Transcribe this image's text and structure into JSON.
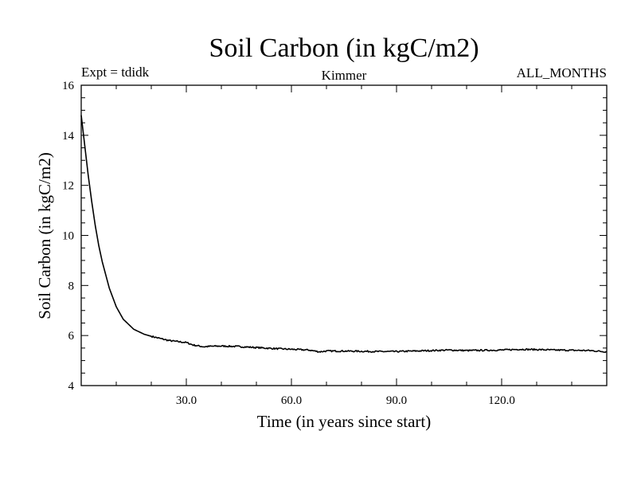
{
  "chart_data": {
    "type": "line",
    "title": "Soil Carbon (in kgC/m2)",
    "subtitle_left": "Expt = tdidk",
    "subtitle_center": "Kimmer",
    "subtitle_right": "ALL_MONTHS",
    "xlabel": "Time (in years since start)",
    "ylabel": "Soil Carbon (in kgC/m2)",
    "xlim": [
      0,
      150
    ],
    "ylim": [
      4,
      16
    ],
    "x_ticks": [
      30,
      60,
      90,
      120
    ],
    "x_tick_labels": [
      "30.0",
      "60.0",
      "90.0",
      "120.0"
    ],
    "y_ticks": [
      4,
      6,
      8,
      10,
      12,
      14,
      16
    ],
    "y_tick_labels": [
      "4",
      "6",
      "8",
      "10",
      "12",
      "14",
      "16"
    ],
    "grid": false,
    "series": [
      {
        "name": "Soil Carbon",
        "x": [
          0,
          1,
          2,
          3,
          4,
          5,
          6,
          8,
          10,
          12,
          15,
          18,
          20,
          22,
          25,
          28,
          30,
          32,
          35,
          37,
          40,
          45,
          50,
          55,
          60,
          65,
          68,
          70,
          75,
          80,
          85,
          90,
          95,
          100,
          105,
          110,
          115,
          120,
          125,
          130,
          135,
          140,
          145,
          150
        ],
        "values": [
          14.8,
          13.6,
          12.4,
          11.35,
          10.4,
          9.6,
          8.95,
          7.9,
          7.15,
          6.65,
          6.25,
          6.05,
          5.97,
          5.9,
          5.8,
          5.75,
          5.72,
          5.62,
          5.55,
          5.57,
          5.58,
          5.56,
          5.52,
          5.48,
          5.45,
          5.42,
          5.35,
          5.38,
          5.38,
          5.37,
          5.36,
          5.36,
          5.38,
          5.4,
          5.42,
          5.4,
          5.41,
          5.42,
          5.45,
          5.44,
          5.42,
          5.41,
          5.4,
          5.35
        ]
      }
    ]
  }
}
